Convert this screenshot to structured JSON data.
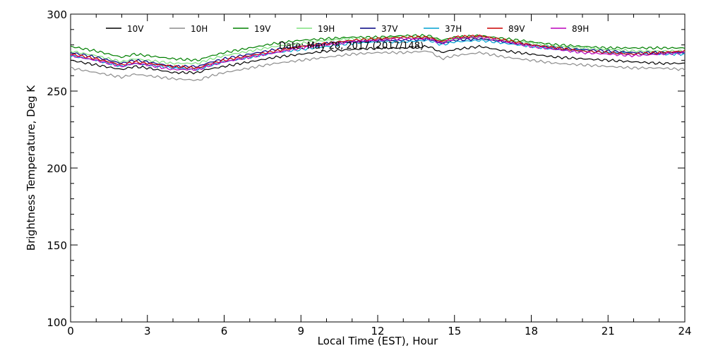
{
  "chart_data": {
    "type": "line",
    "title": "",
    "annotation": "Date: May 28, 2017 (2017/148)",
    "xlabel": "Local Time (EST), Hour",
    "ylabel": "Brightness Temperature, Deg K",
    "xlim": [
      0,
      24
    ],
    "ylim": [
      100,
      300
    ],
    "xticks": [
      0,
      3,
      6,
      9,
      12,
      15,
      18,
      21,
      24
    ],
    "yticks": [
      100,
      150,
      200,
      250,
      300
    ],
    "xtick_labels": [
      "0",
      "3",
      "6",
      "9",
      "12",
      "15",
      "18",
      "21",
      "24"
    ],
    "ytick_labels": [
      "100",
      "150",
      "200",
      "250",
      "300"
    ],
    "x_minor_step": 1,
    "y_minor_step": 10,
    "grid": false,
    "legend_position": "top",
    "x": [
      0,
      1,
      2,
      2.5,
      3,
      4,
      5,
      5.3,
      6,
      7,
      8,
      9,
      10,
      11,
      12,
      13,
      14,
      14.5,
      15,
      16,
      17,
      18,
      19,
      20,
      21,
      22,
      23,
      24
    ],
    "series": [
      {
        "name": "10V",
        "color": "#000000",
        "values": [
          270,
          267,
          264,
          266,
          265,
          262,
          262,
          264,
          266,
          269,
          272,
          274,
          276,
          277,
          278,
          278,
          279,
          275,
          277,
          279,
          276,
          274,
          272,
          271,
          270,
          269,
          268,
          268
        ]
      },
      {
        "name": "10H",
        "color": "#8c8c8c",
        "values": [
          265,
          262,
          259,
          261,
          260,
          258,
          257,
          259,
          262,
          265,
          268,
          270,
          272,
          274,
          275,
          275,
          276,
          271,
          273,
          275,
          272,
          270,
          268,
          267,
          266,
          265,
          265,
          264
        ]
      },
      {
        "name": "19V",
        "color": "#008000",
        "values": [
          279,
          276,
          272,
          274,
          273,
          271,
          270,
          272,
          275,
          278,
          281,
          283,
          284,
          285,
          285,
          286,
          286,
          283,
          285,
          286,
          284,
          282,
          280,
          279,
          278,
          278,
          278,
          278
        ]
      },
      {
        "name": "19H",
        "color": "#7ee07e",
        "values": [
          276,
          273,
          269,
          271,
          270,
          268,
          268,
          270,
          273,
          276,
          279,
          281,
          283,
          284,
          284,
          285,
          285,
          282,
          284,
          285,
          283,
          281,
          279,
          278,
          277,
          276,
          276,
          276
        ]
      },
      {
        "name": "37V",
        "color": "#000080",
        "values": [
          275,
          272,
          268,
          270,
          269,
          266,
          266,
          268,
          271,
          274,
          277,
          279,
          281,
          282,
          283,
          283,
          284,
          281,
          283,
          284,
          282,
          280,
          278,
          277,
          276,
          275,
          275,
          275
        ]
      },
      {
        "name": "37H",
        "color": "#00a0d0",
        "values": [
          273,
          270,
          266,
          268,
          267,
          265,
          264,
          266,
          269,
          272,
          275,
          277,
          279,
          281,
          282,
          282,
          283,
          280,
          282,
          283,
          281,
          279,
          277,
          276,
          275,
          274,
          274,
          274
        ]
      },
      {
        "name": "89V",
        "color": "#cc0000",
        "values": [
          274,
          271,
          267,
          269,
          268,
          266,
          265,
          267,
          270,
          273,
          276,
          279,
          281,
          283,
          284,
          285,
          285,
          282,
          285,
          286,
          283,
          280,
          278,
          276,
          275,
          274,
          275,
          276
        ]
      },
      {
        "name": "89H",
        "color": "#bb00bb",
        "values": [
          273,
          270,
          266,
          268,
          267,
          264,
          264,
          266,
          269,
          272,
          275,
          278,
          280,
          282,
          283,
          284,
          284,
          281,
          284,
          285,
          282,
          279,
          277,
          275,
          274,
          273,
          274,
          275
        ]
      }
    ]
  }
}
